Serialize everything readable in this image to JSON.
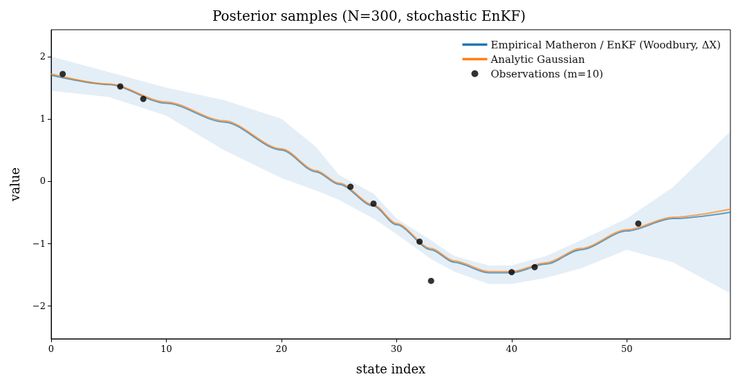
{
  "chart_data": {
    "type": "line",
    "title": "Posterior samples (N=300, stochastic EnKF)",
    "xlabel": "state index",
    "ylabel": "value",
    "xlim": [
      0,
      59
    ],
    "ylim": [
      -2.53,
      2.43
    ],
    "xticks": [
      0,
      10,
      20,
      30,
      40,
      50
    ],
    "yticks": [
      -2,
      -1,
      0,
      1,
      2
    ],
    "grid": false,
    "legend": "top right",
    "line_style": "solid",
    "series": [
      {
        "name": "Empirical Matheron / EnKF (Woodbury, ΔX)",
        "color": "#1f77b4",
        "marker": "none",
        "x": [
          0,
          5,
          10,
          15,
          20,
          23,
          25,
          28,
          30,
          33,
          35,
          38,
          40,
          43,
          46,
          50,
          54,
          59
        ],
        "values": [
          1.7,
          1.55,
          1.25,
          0.95,
          0.5,
          0.15,
          -0.05,
          -0.4,
          -0.7,
          -1.1,
          -1.3,
          -1.47,
          -1.47,
          -1.33,
          -1.1,
          -0.8,
          -0.6,
          -0.5
        ],
        "lower": [
          1.45,
          1.35,
          1.05,
          0.5,
          0.05,
          -0.15,
          -0.3,
          -0.6,
          -0.85,
          -1.25,
          -1.45,
          -1.65,
          -1.65,
          -1.55,
          -1.4,
          -1.1,
          -1.3,
          -1.8
        ],
        "upper": [
          2.0,
          1.75,
          1.5,
          1.3,
          1.0,
          0.55,
          0.1,
          -0.2,
          -0.6,
          -0.95,
          -1.2,
          -1.35,
          -1.35,
          -1.2,
          -0.95,
          -0.6,
          -0.1,
          0.8
        ]
      },
      {
        "name": "Analytic Gaussian",
        "color": "#ff7f0e",
        "marker": "none",
        "x": [
          0,
          5,
          10,
          15,
          20,
          23,
          25,
          28,
          30,
          33,
          35,
          38,
          40,
          43,
          46,
          50,
          54,
          59
        ],
        "values": [
          1.72,
          1.56,
          1.27,
          0.97,
          0.52,
          0.17,
          -0.03,
          -0.38,
          -0.68,
          -1.08,
          -1.28,
          -1.45,
          -1.45,
          -1.31,
          -1.08,
          -0.78,
          -0.58,
          -0.45
        ]
      },
      {
        "name": "Observations (m=10)",
        "type": "scatter",
        "color": "#000000",
        "marker": "circle",
        "x": [
          1,
          6,
          8,
          26,
          28,
          32,
          33,
          40,
          42,
          51
        ],
        "values": [
          1.72,
          1.52,
          1.32,
          -0.09,
          -0.36,
          -0.97,
          -1.6,
          -1.46,
          -1.38,
          -0.68
        ]
      }
    ]
  }
}
